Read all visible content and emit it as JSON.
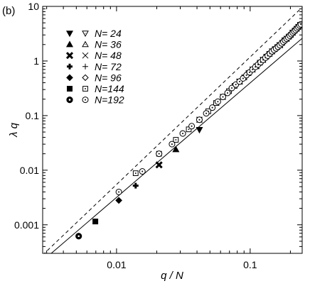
{
  "chart_data": {
    "type": "scatter",
    "panel_label": "(b)",
    "xlabel": "q / N",
    "ylabel": "λ q",
    "xscale": "log",
    "yscale": "log",
    "xlim": [
      0.0028,
      0.245
    ],
    "ylim": [
      0.0003,
      10
    ],
    "x_ticks": [
      {
        "value": 0.01,
        "label": "0.01"
      },
      {
        "value": 0.1,
        "label": "0.1"
      }
    ],
    "y_ticks": [
      {
        "value": 0.001,
        "label": "0.001"
      },
      {
        "value": 0.01,
        "label": "0.01"
      },
      {
        "value": 0.1,
        "label": "0.1"
      },
      {
        "value": 1,
        "label": "1"
      },
      {
        "value": 10,
        "label": "10"
      }
    ],
    "grid": false,
    "legend_position": "top-left",
    "series": [
      {
        "name": "N= 24",
        "marker": "triangle-down",
        "filled": [
          [
            0.0417,
            0.055
          ]
        ],
        "open": [
          [
            0.0833,
            0.42
          ],
          [
            0.125,
            1.05
          ],
          [
            0.1667,
            1.95
          ],
          [
            0.2083,
            3.3
          ]
        ]
      },
      {
        "name": "N= 36",
        "marker": "triangle-up",
        "filled": [
          [
            0.0278,
            0.024
          ]
        ],
        "open": [
          [
            0.0556,
            0.17
          ],
          [
            0.0833,
            0.42
          ],
          [
            0.1111,
            0.8
          ],
          [
            0.1389,
            1.35
          ],
          [
            0.1667,
            1.95
          ],
          [
            0.1944,
            2.8
          ],
          [
            0.2222,
            3.9
          ]
        ]
      },
      {
        "name": "N= 48",
        "marker": "x-cross",
        "filled": [
          [
            0.0208,
            0.0125
          ]
        ],
        "open": [
          [
            0.0417,
            0.084
          ],
          [
            0.0625,
            0.22
          ],
          [
            0.0833,
            0.42
          ],
          [
            0.1042,
            0.7
          ],
          [
            0.125,
            1.05
          ],
          [
            0.1458,
            1.5
          ],
          [
            0.1667,
            1.95
          ],
          [
            0.1875,
            2.55
          ],
          [
            0.2083,
            3.3
          ],
          [
            0.2292,
            4.2
          ]
        ]
      },
      {
        "name": "N= 72",
        "marker": "plus",
        "filled": [
          [
            0.0139,
            0.0052
          ]
        ],
        "open": [
          [
            0.0278,
            0.036
          ],
          [
            0.0417,
            0.084
          ],
          [
            0.0556,
            0.17
          ],
          [
            0.0694,
            0.28
          ],
          [
            0.0833,
            0.42
          ],
          [
            0.0972,
            0.6
          ],
          [
            0.1111,
            0.8
          ],
          [
            0.125,
            1.05
          ],
          [
            0.1389,
            1.35
          ],
          [
            0.1528,
            1.65
          ],
          [
            0.1667,
            1.95
          ],
          [
            0.1806,
            2.4
          ],
          [
            0.1944,
            2.8
          ],
          [
            0.2083,
            3.3
          ],
          [
            0.2222,
            3.9
          ],
          [
            0.2361,
            4.6
          ]
        ]
      },
      {
        "name": "N= 96",
        "marker": "diamond",
        "filled": [
          [
            0.0104,
            0.0028
          ]
        ],
        "open": [
          [
            0.0208,
            0.02
          ],
          [
            0.0313,
            0.047
          ],
          [
            0.0417,
            0.084
          ],
          [
            0.0521,
            0.14
          ],
          [
            0.0625,
            0.22
          ],
          [
            0.0729,
            0.32
          ],
          [
            0.0833,
            0.42
          ],
          [
            0.0938,
            0.55
          ],
          [
            0.1042,
            0.7
          ],
          [
            0.1146,
            0.86
          ],
          [
            0.125,
            1.05
          ],
          [
            0.1354,
            1.25
          ],
          [
            0.1458,
            1.5
          ],
          [
            0.1563,
            1.7
          ],
          [
            0.1667,
            1.95
          ],
          [
            0.1771,
            2.25
          ],
          [
            0.1875,
            2.55
          ],
          [
            0.1979,
            2.9
          ],
          [
            0.2083,
            3.3
          ],
          [
            0.2188,
            3.7
          ],
          [
            0.2292,
            4.2
          ],
          [
            0.2396,
            4.7
          ]
        ]
      },
      {
        "name": "N=144",
        "marker": "square",
        "filled": [
          [
            0.00694,
            0.00115
          ]
        ],
        "open": [
          [
            0.0139,
            0.0088
          ],
          [
            0.0208,
            0.02
          ],
          [
            0.0278,
            0.036
          ],
          [
            0.0347,
            0.056
          ],
          [
            0.0417,
            0.084
          ],
          [
            0.0486,
            0.12
          ],
          [
            0.0556,
            0.17
          ],
          [
            0.0625,
            0.22
          ],
          [
            0.0694,
            0.28
          ],
          [
            0.0764,
            0.35
          ],
          [
            0.0833,
            0.42
          ],
          [
            0.0903,
            0.5
          ],
          [
            0.0972,
            0.6
          ],
          [
            0.1042,
            0.7
          ],
          [
            0.1111,
            0.8
          ],
          [
            0.1181,
            0.93
          ],
          [
            0.125,
            1.05
          ],
          [
            0.1319,
            1.2
          ],
          [
            0.1389,
            1.35
          ],
          [
            0.1458,
            1.5
          ],
          [
            0.1528,
            1.65
          ],
          [
            0.1597,
            1.8
          ],
          [
            0.1667,
            1.95
          ],
          [
            0.1736,
            2.15
          ],
          [
            0.1806,
            2.4
          ],
          [
            0.1875,
            2.55
          ],
          [
            0.1944,
            2.8
          ],
          [
            0.2014,
            3.0
          ],
          [
            0.2083,
            3.3
          ],
          [
            0.2153,
            3.6
          ],
          [
            0.2222,
            3.9
          ],
          [
            0.2292,
            4.2
          ],
          [
            0.2361,
            4.6
          ]
        ]
      },
      {
        "name": "N=192",
        "marker": "circle",
        "filled": [
          [
            0.00521,
            0.00062
          ]
        ],
        "open": [
          [
            0.0104,
            0.004
          ],
          [
            0.0156,
            0.0095
          ],
          [
            0.0208,
            0.02
          ],
          [
            0.026,
            0.03
          ],
          [
            0.0313,
            0.047
          ],
          [
            0.0365,
            0.064
          ],
          [
            0.0417,
            0.084
          ],
          [
            0.0469,
            0.11
          ],
          [
            0.0521,
            0.14
          ],
          [
            0.0573,
            0.18
          ],
          [
            0.0625,
            0.22
          ],
          [
            0.0677,
            0.26
          ],
          [
            0.0729,
            0.32
          ],
          [
            0.0781,
            0.37
          ],
          [
            0.0833,
            0.42
          ],
          [
            0.0885,
            0.48
          ],
          [
            0.0938,
            0.55
          ],
          [
            0.099,
            0.62
          ],
          [
            0.1042,
            0.7
          ],
          [
            0.1094,
            0.78
          ],
          [
            0.1146,
            0.86
          ],
          [
            0.1198,
            0.95
          ],
          [
            0.125,
            1.05
          ],
          [
            0.1302,
            1.15
          ],
          [
            0.1354,
            1.25
          ],
          [
            0.1406,
            1.37
          ],
          [
            0.1458,
            1.5
          ],
          [
            0.151,
            1.6
          ],
          [
            0.1563,
            1.7
          ],
          [
            0.1615,
            1.82
          ],
          [
            0.1667,
            1.95
          ],
          [
            0.1719,
            2.1
          ],
          [
            0.1771,
            2.25
          ],
          [
            0.1823,
            2.4
          ],
          [
            0.1875,
            2.55
          ],
          [
            0.1927,
            2.7
          ],
          [
            0.1979,
            2.9
          ],
          [
            0.2031,
            3.1
          ],
          [
            0.2083,
            3.3
          ],
          [
            0.2135,
            3.5
          ],
          [
            0.2188,
            3.7
          ],
          [
            0.224,
            3.95
          ],
          [
            0.2292,
            4.2
          ],
          [
            0.2344,
            4.45
          ],
          [
            0.2396,
            4.7
          ]
        ]
      }
    ],
    "reference_lines": [
      {
        "style": "solid",
        "points": [
          [
            0.0028,
            0.00022
          ],
          [
            0.245,
            2.6
          ]
        ]
      },
      {
        "style": "dashed",
        "points": [
          [
            0.0028,
            0.00028
          ],
          [
            0.245,
            9.6
          ]
        ]
      }
    ]
  }
}
